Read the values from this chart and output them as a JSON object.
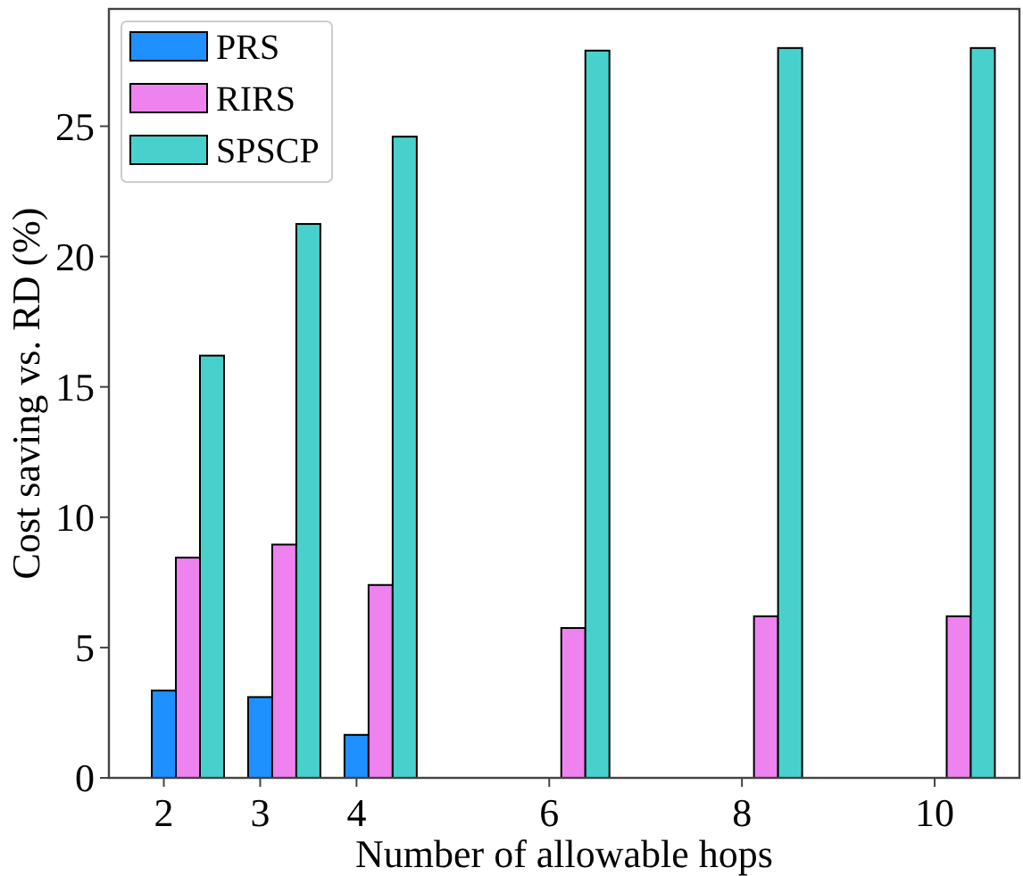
{
  "chart_data": {
    "type": "bar",
    "xlabel": "Number of allowable hops",
    "ylabel": "Cost saving vs. RD (%)",
    "x": [
      2,
      3,
      4,
      6,
      8,
      10
    ],
    "xlim": [
      1.43,
      10.88
    ],
    "xticks": [
      2,
      3,
      4,
      6,
      8,
      10
    ],
    "ylim": [
      0,
      29.5
    ],
    "yticks": [
      0,
      5,
      10,
      15,
      20,
      25
    ],
    "legend": "top left",
    "grid": false,
    "series": [
      {
        "name": "PRS",
        "color": "#1e90ff",
        "values": [
          3.35,
          3.1,
          1.65,
          0,
          0,
          0
        ]
      },
      {
        "name": "RIRS",
        "color": "#ee82ee",
        "values": [
          8.45,
          8.95,
          7.4,
          5.75,
          6.2,
          6.2
        ]
      },
      {
        "name": "SPSCP",
        "color": "#48d1cc",
        "values": [
          16.2,
          21.25,
          24.6,
          27.9,
          28.0,
          28.0
        ]
      }
    ]
  }
}
